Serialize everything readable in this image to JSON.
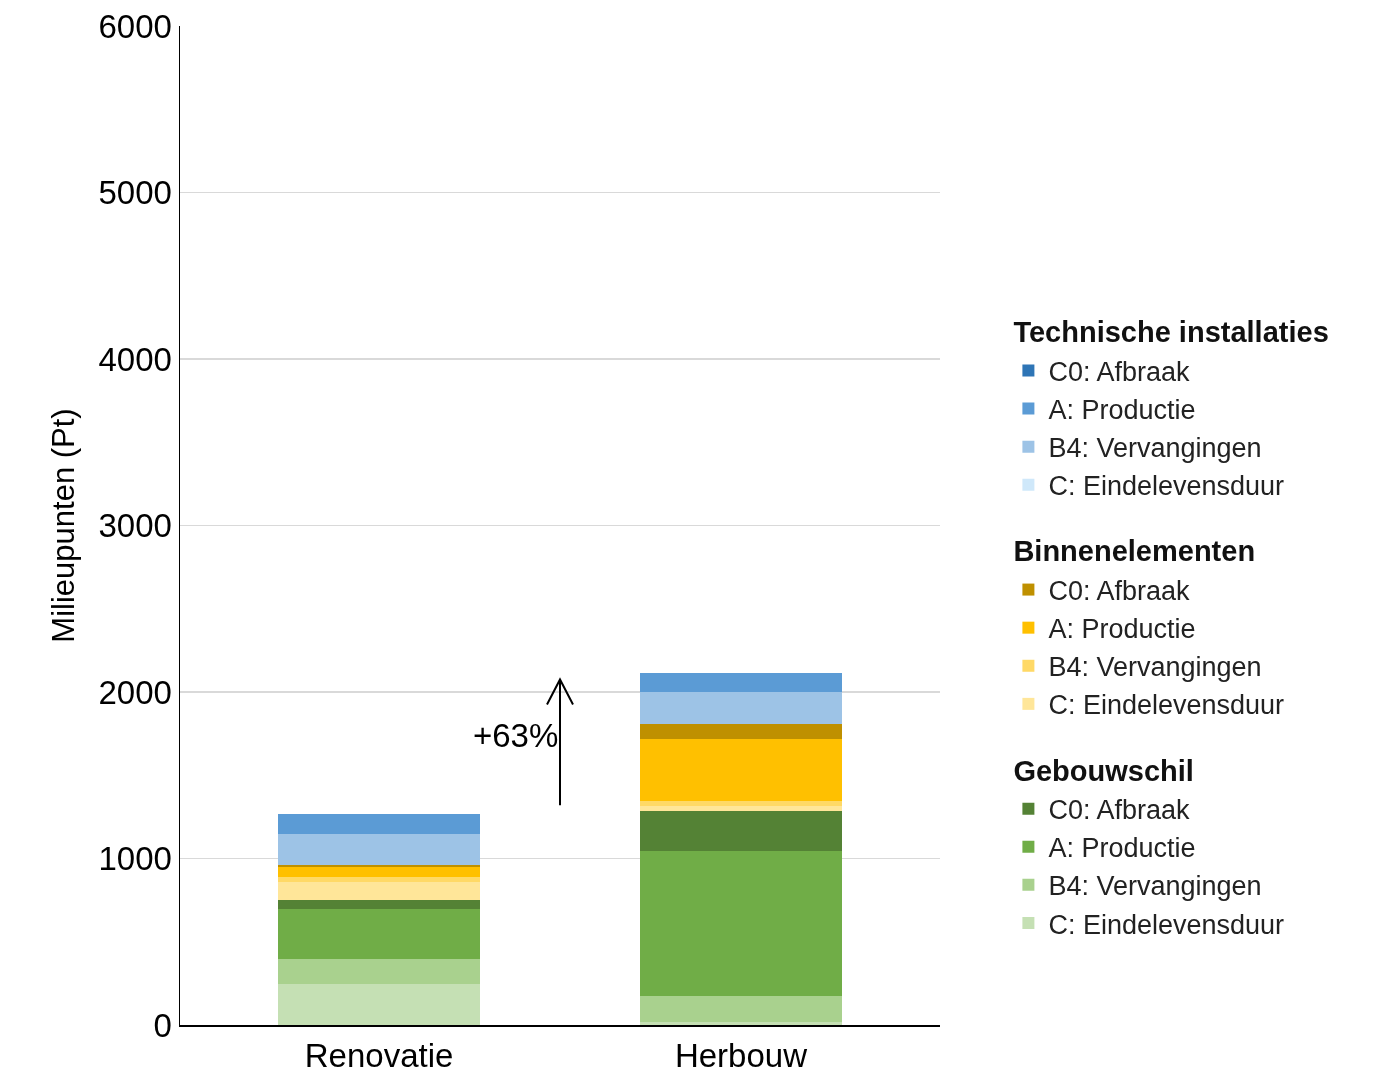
{
  "chart_data": {
    "type": "bar",
    "stacked": true,
    "categories": [
      "Renovatie",
      "Herbouw"
    ],
    "ylabel": "Milieupunten (Pt)",
    "ylim": [
      0,
      6000
    ],
    "yticks": [
      0,
      1000,
      2000,
      3000,
      4000,
      5000,
      6000
    ],
    "grid": "y",
    "legend": "right",
    "annotations": [
      "+63%",
      "Technische installaties",
      "Binnenelementen",
      "Gebouwschil"
    ],
    "series": [
      {
        "name": "C: Eindelevensduur",
        "color": "#c5e0b4",
        "values": [
          245,
          20
        ]
      },
      {
        "name": "B4: Vervangingen",
        "color": "#a9d18e",
        "values": [
          150,
          155
        ]
      },
      {
        "name": "A: Productie",
        "color": "#70ad47",
        "values": [
          300,
          870
        ]
      },
      {
        "name": "C0: Afbraak",
        "color": "#548235",
        "values": [
          55,
          240
        ]
      },
      {
        "name": "C: Eindelevensduur",
        "color": "#ffe699",
        "values": [
          110,
          30
        ]
      },
      {
        "name": "B4: Vervangingen",
        "color": "#ffd966",
        "values": [
          30,
          30
        ]
      },
      {
        "name": "A: Productie",
        "color": "#ffc000",
        "values": [
          60,
          375
        ]
      },
      {
        "name": "C0: Afbraak",
        "color": "#bf9000",
        "values": [
          10,
          90
        ]
      },
      {
        "name": "C: Eindelevensduur",
        "color": "#cfe8fa",
        "values": [
          0,
          0
        ]
      },
      {
        "name": "B4: Vervangingen",
        "color": "#9dc3e6",
        "values": [
          190,
          190
        ]
      },
      {
        "name": "A: Productie",
        "color": "#5b9bd5",
        "values": [
          115,
          115
        ]
      },
      {
        "name": "C0: Afbraak",
        "color": "#2e75b6",
        "values": [
          0,
          0
        ]
      }
    ]
  }
}
